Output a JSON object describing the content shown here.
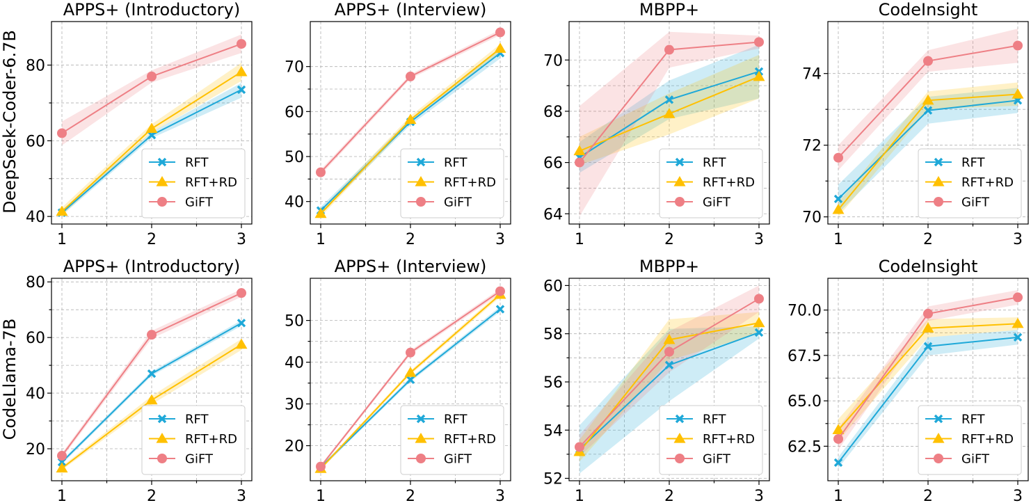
{
  "colors": {
    "RFT": "#1ea8d8",
    "RFT+RD": "#ffc000",
    "GiFT": "#ee7f85"
  },
  "row_labels": [
    "DeepSeek-Coder-6.7B",
    "CodeLlama-7B"
  ],
  "chart_data": [
    {
      "type": "line",
      "row": 0,
      "col": 0,
      "title": "APPS+ (Introductory)",
      "ylabel": "DeepSeek-Coder-6.7B",
      "x": [
        1,
        2,
        3
      ],
      "xticks": [
        "1",
        "2",
        "3"
      ],
      "ylim": [
        38,
        91.5
      ],
      "yticks": [
        40,
        60,
        80
      ],
      "ytick_labels": [
        "40",
        "60",
        "80"
      ],
      "series": [
        {
          "name": "RFT",
          "marker": "x",
          "values": [
            41.0,
            61.5,
            73.5
          ],
          "lower": [
            40.3,
            60.7,
            71.4
          ],
          "upper": [
            41.7,
            62.3,
            75.3
          ]
        },
        {
          "name": "RFT+RD",
          "marker": "triangle",
          "values": [
            41.3,
            63.2,
            78.2
          ],
          "lower": [
            40.3,
            62.2,
            75.8
          ],
          "upper": [
            42.4,
            64.4,
            80.6
          ]
        },
        {
          "name": "GiFT",
          "marker": "circle",
          "values": [
            62.0,
            77.0,
            85.6
          ],
          "lower": [
            58.8,
            75.4,
            83.2
          ],
          "upper": [
            65.1,
            78.6,
            88.1
          ]
        }
      ]
    },
    {
      "type": "line",
      "row": 0,
      "col": 1,
      "title": "APPS+ (Interview)",
      "ylabel": "",
      "x": [
        1,
        2,
        3
      ],
      "xticks": [
        "1",
        "2",
        "3"
      ],
      "ylim": [
        35,
        80
      ],
      "yticks": [
        40,
        50,
        60,
        70
      ],
      "ytick_labels": [
        "40",
        "50",
        "60",
        "70"
      ],
      "series": [
        {
          "name": "RFT",
          "marker": "x",
          "values": [
            38.0,
            57.7,
            73.0
          ],
          "lower": [
            37.3,
            57.0,
            71.8
          ],
          "upper": [
            38.8,
            58.4,
            74.2
          ]
        },
        {
          "name": "RFT+RD",
          "marker": "triangle",
          "values": [
            37.3,
            58.2,
            74.0
          ],
          "lower": [
            36.6,
            57.6,
            73.0
          ],
          "upper": [
            38.2,
            59.0,
            75.0
          ]
        },
        {
          "name": "GiFT",
          "marker": "circle",
          "values": [
            46.5,
            67.8,
            77.6
          ],
          "lower": [
            45.9,
            67.3,
            77.0
          ],
          "upper": [
            47.1,
            68.3,
            78.2
          ]
        }
      ]
    },
    {
      "type": "line",
      "row": 0,
      "col": 2,
      "title": "MBPP+",
      "ylabel": "",
      "x": [
        1,
        2,
        3
      ],
      "xticks": [
        "1",
        "2",
        "3"
      ],
      "ylim": [
        63.6,
        71.5
      ],
      "yticks": [
        64,
        66,
        68,
        70
      ],
      "ytick_labels": [
        "64",
        "66",
        "68",
        "70"
      ],
      "series": [
        {
          "name": "RFT",
          "marker": "x",
          "values": [
            66.2,
            68.45,
            69.55
          ],
          "lower": [
            65.6,
            67.7,
            68.5
          ],
          "upper": [
            66.8,
            69.2,
            70.6
          ]
        },
        {
          "name": "RFT+RD",
          "marker": "triangle",
          "values": [
            66.45,
            67.9,
            69.35
          ],
          "lower": [
            65.9,
            67.1,
            68.5
          ],
          "upper": [
            67.0,
            68.7,
            70.2
          ]
        },
        {
          "name": "GiFT",
          "marker": "circle",
          "values": [
            66.0,
            70.4,
            70.7
          ],
          "lower": [
            63.9,
            69.7,
            70.45
          ],
          "upper": [
            68.2,
            71.1,
            70.95
          ]
        }
      ]
    },
    {
      "type": "line",
      "row": 0,
      "col": 3,
      "title": "CodeInsight",
      "ylabel": "",
      "x": [
        1,
        2,
        3
      ],
      "xticks": [
        "1",
        "2",
        "3"
      ],
      "ylim": [
        69.8,
        75.45
      ],
      "yticks": [
        70,
        72,
        74
      ],
      "ytick_labels": [
        "70",
        "72",
        "74"
      ],
      "series": [
        {
          "name": "RFT",
          "marker": "x",
          "values": [
            70.5,
            72.97,
            73.25
          ],
          "lower": [
            70.1,
            72.6,
            72.9
          ],
          "upper": [
            70.9,
            73.35,
            73.6
          ]
        },
        {
          "name": "RFT+RD",
          "marker": "triangle",
          "values": [
            70.2,
            73.25,
            73.42
          ],
          "lower": [
            70.0,
            73.0,
            73.1
          ],
          "upper": [
            70.4,
            73.5,
            73.75
          ]
        },
        {
          "name": "GiFT",
          "marker": "circle",
          "values": [
            71.65,
            74.35,
            74.78
          ],
          "lower": [
            71.3,
            74.05,
            74.3
          ],
          "upper": [
            72.0,
            74.65,
            75.25
          ]
        }
      ]
    },
    {
      "type": "line",
      "row": 1,
      "col": 0,
      "title": "APPS+ (Introductory)",
      "ylabel": "CodeLlama-7B",
      "x": [
        1,
        2,
        3
      ],
      "xticks": [
        "1",
        "2",
        "3"
      ],
      "ylim": [
        8.5,
        81.3
      ],
      "yticks": [
        20,
        40,
        60,
        80
      ],
      "ytick_labels": [
        "20",
        "40",
        "60",
        "80"
      ],
      "series": [
        {
          "name": "RFT",
          "marker": "x",
          "values": [
            15.2,
            47.0,
            65.2
          ],
          "lower": [
            14.5,
            46.2,
            64.2
          ],
          "upper": [
            15.9,
            47.8,
            66.2
          ]
        },
        {
          "name": "RFT+RD",
          "marker": "triangle",
          "values": [
            13.0,
            37.5,
            57.5
          ],
          "lower": [
            12.3,
            36.0,
            55.5
          ],
          "upper": [
            13.7,
            39.0,
            59.5
          ]
        },
        {
          "name": "GiFT",
          "marker": "circle",
          "values": [
            17.5,
            61.0,
            76.0
          ],
          "lower": [
            16.6,
            59.6,
            74.6
          ],
          "upper": [
            18.4,
            62.4,
            77.4
          ]
        }
      ]
    },
    {
      "type": "line",
      "row": 1,
      "col": 1,
      "title": "APPS+ (Interview)",
      "ylabel": "",
      "x": [
        1,
        2,
        3
      ],
      "xticks": [
        "1",
        "2",
        "3"
      ],
      "ylim": [
        11.6,
        60.1
      ],
      "yticks": [
        20,
        30,
        40,
        50
      ],
      "ytick_labels": [
        "20",
        "30",
        "40",
        "50"
      ],
      "series": [
        {
          "name": "RFT",
          "marker": "x",
          "values": [
            14.8,
            35.8,
            52.7
          ],
          "lower": [
            14.4,
            35.3,
            52.1
          ],
          "upper": [
            15.2,
            36.3,
            53.3
          ]
        },
        {
          "name": "RFT+RD",
          "marker": "triangle",
          "values": [
            14.5,
            37.5,
            56.2
          ],
          "lower": [
            14.1,
            37.0,
            55.6
          ],
          "upper": [
            14.9,
            38.0,
            56.8
          ]
        },
        {
          "name": "GiFT",
          "marker": "circle",
          "values": [
            15.0,
            42.3,
            57.0
          ],
          "lower": [
            14.6,
            41.8,
            56.4
          ],
          "upper": [
            15.4,
            42.8,
            57.6
          ]
        }
      ]
    },
    {
      "type": "line",
      "row": 1,
      "col": 2,
      "title": "MBPP+",
      "ylabel": "",
      "x": [
        1,
        2,
        3
      ],
      "xticks": [
        "1",
        "2",
        "3"
      ],
      "ylim": [
        51.9,
        60.3
      ],
      "yticks": [
        52,
        54,
        56,
        58,
        60
      ],
      "ytick_labels": [
        "52",
        "54",
        "56",
        "58",
        "60"
      ],
      "series": [
        {
          "name": "RFT",
          "marker": "x",
          "values": [
            53.2,
            56.7,
            58.05
          ],
          "lower": [
            52.2,
            55.2,
            57.8
          ],
          "upper": [
            54.2,
            58.2,
            58.3
          ]
        },
        {
          "name": "RFT+RD",
          "marker": "triangle",
          "values": [
            53.1,
            57.75,
            58.45
          ],
          "lower": [
            52.7,
            56.9,
            58.0
          ],
          "upper": [
            53.6,
            58.6,
            58.9
          ]
        },
        {
          "name": "GiFT",
          "marker": "circle",
          "values": [
            53.3,
            57.25,
            59.45
          ],
          "lower": [
            52.9,
            56.4,
            58.9
          ],
          "upper": [
            53.8,
            58.1,
            60.0
          ]
        }
      ]
    },
    {
      "type": "line",
      "row": 1,
      "col": 3,
      "title": "CodeInsight",
      "ylabel": "",
      "x": [
        1,
        2,
        3
      ],
      "xticks": [
        "1",
        "2",
        "3"
      ],
      "ylim": [
        60.6,
        71.75
      ],
      "yticks": [
        62.5,
        65,
        67.5,
        70
      ],
      "ytick_labels": [
        "62.5",
        "65.0",
        "67.5",
        "70.0"
      ],
      "series": [
        {
          "name": "RFT",
          "marker": "x",
          "values": [
            61.6,
            68.0,
            68.5
          ],
          "lower": [
            61.3,
            67.5,
            68.1
          ],
          "upper": [
            61.9,
            68.5,
            68.9
          ]
        },
        {
          "name": "RFT+RD",
          "marker": "triangle",
          "values": [
            63.4,
            69.0,
            69.25
          ],
          "lower": [
            62.8,
            68.5,
            68.9
          ],
          "upper": [
            64.0,
            69.5,
            69.6
          ]
        },
        {
          "name": "GiFT",
          "marker": "circle",
          "values": [
            62.9,
            69.8,
            70.7
          ],
          "lower": [
            62.3,
            69.4,
            70.3
          ],
          "upper": [
            63.5,
            70.2,
            71.1
          ]
        }
      ]
    }
  ]
}
